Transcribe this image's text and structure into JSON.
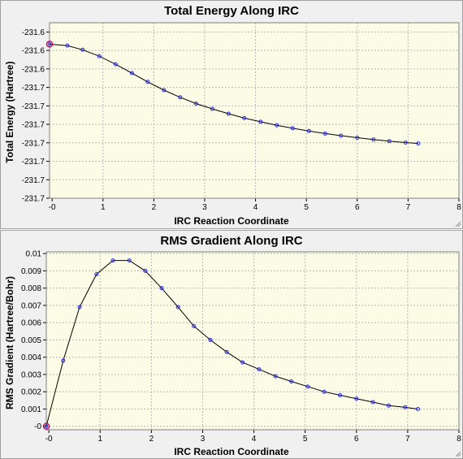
{
  "chart_data": [
    {
      "type": "line",
      "title": "Total Energy Along IRC",
      "xlabel": "IRC Reaction Coordinate",
      "ylabel": "Total Energy (Hartree)",
      "xlim": [
        -0.05,
        8
      ],
      "ylim": [
        -231.68,
        -231.604
      ],
      "xticks": [
        0,
        1,
        2,
        3,
        4,
        5,
        6,
        7,
        8
      ],
      "xtick_labels": [
        "-0",
        "1",
        "2",
        "3",
        "4",
        "5",
        "6",
        "7",
        "8"
      ],
      "yticks": [
        -231.608,
        -231.616,
        -231.624,
        -231.632,
        -231.64,
        -231.648,
        -231.656,
        -231.664,
        -231.672,
        -231.68
      ],
      "ytick_labels": [
        "-231.6",
        "-231.6",
        "-231.6",
        "-231.7",
        "-231.7",
        "-231.7",
        "-231.7",
        "-231.7",
        "-231.7",
        "-231.7"
      ],
      "grid": true,
      "colors": {
        "line": "#000000",
        "marker": "#2222ff",
        "first_marker": "#d0004a",
        "plot_bg": "#fbfbe6"
      },
      "series": [
        {
          "x": [
            -0.05,
            0.3,
            0.6,
            0.93,
            1.25,
            1.57,
            1.88,
            2.2,
            2.52,
            2.83,
            3.15,
            3.47,
            3.78,
            4.1,
            4.42,
            4.73,
            5.05,
            5.37,
            5.68,
            6.0,
            6.32,
            6.63,
            6.95,
            7.2
          ],
          "y": [
            -231.6133,
            -231.6139,
            -231.6157,
            -231.6185,
            -231.622,
            -231.6258,
            -231.6296,
            -231.6332,
            -231.6363,
            -231.639,
            -231.6413,
            -231.6434,
            -231.6453,
            -231.6469,
            -231.6484,
            -231.6497,
            -231.6509,
            -231.652,
            -231.6529,
            -231.6538,
            -231.6546,
            -231.6553,
            -231.6559,
            -231.6563
          ]
        }
      ]
    },
    {
      "type": "line",
      "title": "RMS Gradient Along IRC",
      "xlabel": "IRC Reaction Coordinate",
      "ylabel": "RMS Gradient (Hartree/Bohr)",
      "xlim": [
        -0.05,
        8
      ],
      "ylim": [
        -0.0002,
        0.0101
      ],
      "xticks": [
        0,
        1,
        2,
        3,
        4,
        5,
        6,
        7,
        8
      ],
      "xtick_labels": [
        "-0",
        "1",
        "2",
        "3",
        "4",
        "5",
        "6",
        "7",
        "8"
      ],
      "yticks": [
        0,
        0.001,
        0.002,
        0.003,
        0.004,
        0.005,
        0.006,
        0.007,
        0.008,
        0.009,
        0.01
      ],
      "ytick_labels": [
        "-0",
        "0.001",
        "0.002",
        "0.003",
        "0.004",
        "0.005",
        "0.006",
        "0.007",
        "0.008",
        "0.009",
        "0.01"
      ],
      "grid": true,
      "colors": {
        "line": "#000000",
        "marker": "#2222ff",
        "first_marker": "#d0004a",
        "plot_bg": "#fbfbe6"
      },
      "series": [
        {
          "x": [
            -0.05,
            0.28,
            0.6,
            0.93,
            1.25,
            1.57,
            1.88,
            2.2,
            2.52,
            2.83,
            3.15,
            3.47,
            3.78,
            4.1,
            4.42,
            4.73,
            5.05,
            5.37,
            5.68,
            6.0,
            6.32,
            6.63,
            6.95,
            7.2
          ],
          "y": [
            0.0,
            0.0038,
            0.0069,
            0.0088,
            0.0096,
            0.0096,
            0.009,
            0.008,
            0.0069,
            0.0058,
            0.005,
            0.0043,
            0.0037,
            0.0033,
            0.0029,
            0.0026,
            0.0023,
            0.002,
            0.0018,
            0.0016,
            0.0014,
            0.0012,
            0.0011,
            0.001
          ]
        }
      ]
    }
  ]
}
